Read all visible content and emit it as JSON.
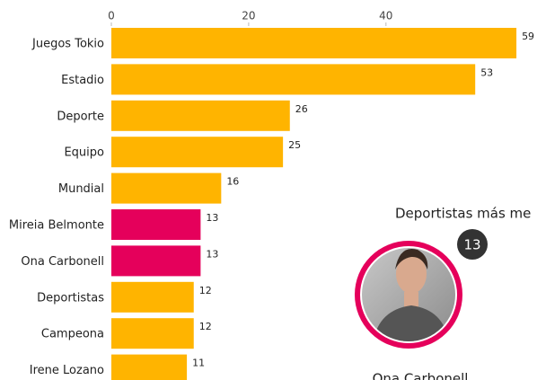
{
  "chart_data": {
    "type": "barh",
    "categories": [
      "Juegos Tokio",
      "Estadio",
      "Deporte",
      "Equipo",
      "Mundial",
      "Mireia Belmonte",
      "Ona Carbonell",
      "Deportistas",
      "Campeona",
      "Irene Lozano"
    ],
    "values": [
      59,
      53,
      26,
      25,
      16,
      13,
      13,
      12,
      12,
      11
    ],
    "colors": [
      "#ffb400",
      "#ffb400",
      "#ffb400",
      "#ffb400",
      "#ffb400",
      "#e5005b",
      "#e5005b",
      "#ffb400",
      "#ffb400",
      "#ffb400"
    ],
    "xlim": [
      0,
      62
    ],
    "xticks": [
      0,
      20,
      40
    ]
  },
  "highlight": {
    "title": "Deportistas más me",
    "count": "13",
    "name": "Ona Carbonell"
  }
}
